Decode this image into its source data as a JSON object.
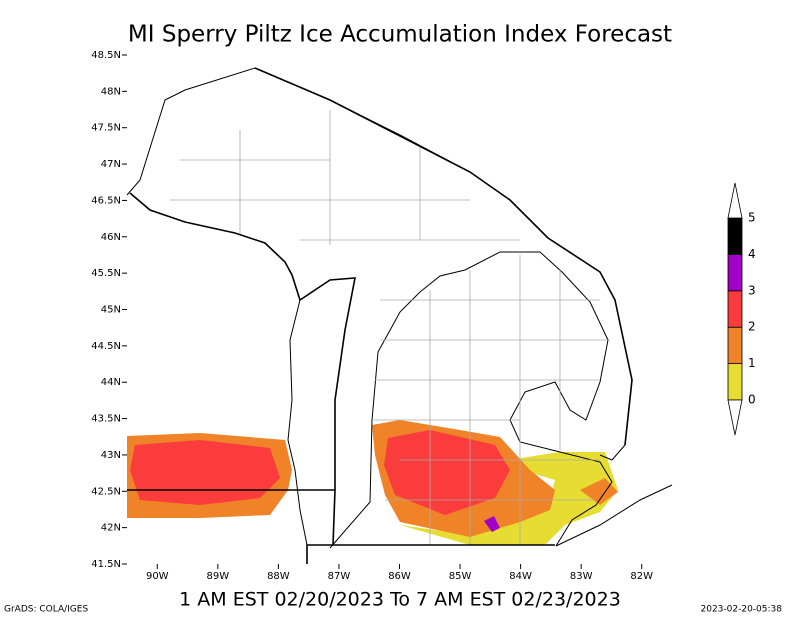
{
  "map": {
    "title": "MI Sperry Piltz Ice Accumulation Index Forecast",
    "subtitle": "1 AM EST 02/20/2023 To 7 AM EST 02/23/2023",
    "latlim": [
      41.5,
      48.5
    ],
    "lonlim": [
      -90.5,
      -81.5
    ],
    "lat_ticks": [
      {
        "value": 48.5,
        "label": "48.5N"
      },
      {
        "value": 48,
        "label": "48N"
      },
      {
        "value": 47.5,
        "label": "47.5N"
      },
      {
        "value": 47,
        "label": "47N"
      },
      {
        "value": 46.5,
        "label": "46.5N"
      },
      {
        "value": 46,
        "label": "46N"
      },
      {
        "value": 45.5,
        "label": "45.5N"
      },
      {
        "value": 45,
        "label": "45N"
      },
      {
        "value": 44.5,
        "label": "44.5N"
      },
      {
        "value": 44,
        "label": "44N"
      },
      {
        "value": 43.5,
        "label": "43.5N"
      },
      {
        "value": 43,
        "label": "43N"
      },
      {
        "value": 42.5,
        "label": "42.5N"
      },
      {
        "value": 42,
        "label": "42N"
      },
      {
        "value": 41.5,
        "label": "41.5N"
      }
    ],
    "lon_ticks": [
      {
        "value": -90,
        "label": "90W"
      },
      {
        "value": -89,
        "label": "89W"
      },
      {
        "value": -88,
        "label": "88W"
      },
      {
        "value": -87,
        "label": "87W"
      },
      {
        "value": -86,
        "label": "86W"
      },
      {
        "value": -85,
        "label": "85W"
      },
      {
        "value": -84,
        "label": "84W"
      },
      {
        "value": -83,
        "label": "83W"
      },
      {
        "value": -82,
        "label": "82W"
      }
    ],
    "colorbar": {
      "levels": [
        0,
        1,
        2,
        3,
        4,
        5
      ],
      "colors": [
        "#e6dc32",
        "#f08228",
        "#fa3c3c",
        "#a000c8",
        "#000000"
      ]
    },
    "footer_left": "GrADS: COLA/IGES",
    "footer_right": "2023-02-20-05:38"
  }
}
